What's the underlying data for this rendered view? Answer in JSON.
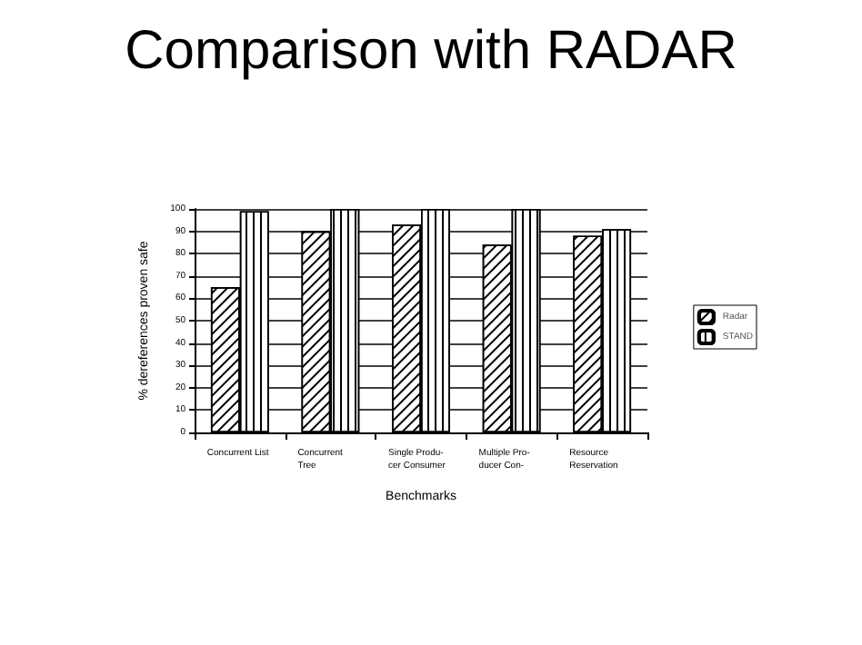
{
  "chart_data": {
    "type": "bar",
    "title": "Comparison with RADAR",
    "xlabel": "Benchmarks",
    "ylabel": "% dereferences proven safe",
    "categories": [
      "Concurrent List",
      "Concurrent\nTree",
      "Single Produ-\ncer Consumer",
      "Multiple Pro-\nducer Con-",
      "Resource\nReservation"
    ],
    "series": [
      {
        "name": "Radar",
        "color": "#ffffff",
        "values": [
          65,
          90,
          93,
          84,
          88
        ]
      },
      {
        "name": "STAND",
        "color": "#ffffff",
        "values": [
          99,
          100,
          100,
          100,
          91
        ]
      }
    ],
    "ylim": [
      0,
      100
    ],
    "yticks": [
      0,
      10,
      20,
      30,
      40,
      50,
      60,
      70,
      80,
      90,
      100
    ],
    "grid": "y",
    "legend": "right"
  }
}
